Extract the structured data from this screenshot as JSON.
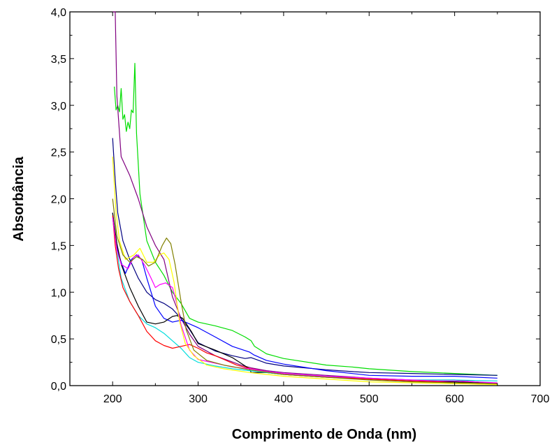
{
  "chart_data": {
    "type": "line",
    "title": "",
    "xlabel": "Comprimento de Onda (nm)",
    "ylabel": "Absorbância",
    "xlim": [
      150,
      700
    ],
    "ylim": [
      0,
      4.0
    ],
    "xticks": [
      200,
      300,
      400,
      500,
      600,
      700
    ],
    "xtick_labels": [
      "200",
      "300",
      "400",
      "500",
      "600",
      "700"
    ],
    "yticks": [
      0,
      0.5,
      1.0,
      1.5,
      2.0,
      2.5,
      3.0,
      3.5,
      4.0
    ],
    "ytick_labels": [
      "0,0",
      "0,5",
      "1,0",
      "1,5",
      "2,0",
      "2,5",
      "3,0",
      "3,5",
      "4,0"
    ],
    "grid": false,
    "legend": "none",
    "series": [
      {
        "color": "#00dd00",
        "points": [
          [
            202,
            3.2
          ],
          [
            204,
            2.95
          ],
          [
            206,
            3.0
          ],
          [
            208,
            2.93
          ],
          [
            210,
            3.18
          ],
          [
            212,
            2.85
          ],
          [
            214,
            2.9
          ],
          [
            216,
            2.72
          ],
          [
            218,
            2.82
          ],
          [
            220,
            2.75
          ],
          [
            222,
            2.95
          ],
          [
            224,
            2.92
          ],
          [
            226,
            3.45
          ],
          [
            228,
            2.7
          ],
          [
            232,
            2.05
          ],
          [
            240,
            1.55
          ],
          [
            250,
            1.32
          ],
          [
            260,
            1.18
          ],
          [
            270,
            1.0
          ],
          [
            280,
            0.88
          ],
          [
            290,
            0.72
          ],
          [
            300,
            0.68
          ],
          [
            320,
            0.64
          ],
          [
            340,
            0.59
          ],
          [
            355,
            0.52
          ],
          [
            362,
            0.48
          ],
          [
            366,
            0.42
          ],
          [
            380,
            0.34
          ],
          [
            400,
            0.29
          ],
          [
            450,
            0.22
          ],
          [
            480,
            0.2
          ],
          [
            500,
            0.18
          ],
          [
            550,
            0.15
          ],
          [
            600,
            0.13
          ],
          [
            650,
            0.11
          ]
        ]
      },
      {
        "color": "#800080",
        "points": [
          [
            200,
            4.0
          ],
          [
            203,
            4.0
          ],
          [
            205,
            3.1
          ],
          [
            210,
            2.45
          ],
          [
            220,
            2.25
          ],
          [
            230,
            2.0
          ],
          [
            240,
            1.7
          ],
          [
            250,
            1.5
          ],
          [
            260,
            1.35
          ],
          [
            270,
            0.95
          ],
          [
            280,
            0.72
          ],
          [
            290,
            0.55
          ],
          [
            300,
            0.42
          ],
          [
            320,
            0.32
          ],
          [
            350,
            0.22
          ],
          [
            362,
            0.19
          ],
          [
            380,
            0.16
          ],
          [
            400,
            0.14
          ],
          [
            450,
            0.11
          ],
          [
            500,
            0.08
          ],
          [
            550,
            0.06
          ],
          [
            600,
            0.06
          ],
          [
            650,
            0.02
          ]
        ]
      },
      {
        "color": "#000080",
        "points": [
          [
            200,
            2.65
          ],
          [
            203,
            2.2
          ],
          [
            206,
            1.85
          ],
          [
            212,
            1.55
          ],
          [
            220,
            1.35
          ],
          [
            230,
            1.15
          ],
          [
            240,
            1.0
          ],
          [
            250,
            0.92
          ],
          [
            260,
            0.88
          ],
          [
            270,
            0.82
          ],
          [
            280,
            0.72
          ],
          [
            290,
            0.6
          ],
          [
            300,
            0.46
          ],
          [
            320,
            0.37
          ],
          [
            340,
            0.32
          ],
          [
            355,
            0.29
          ],
          [
            362,
            0.3
          ],
          [
            380,
            0.24
          ],
          [
            400,
            0.21
          ],
          [
            450,
            0.17
          ],
          [
            480,
            0.15
          ],
          [
            500,
            0.14
          ],
          [
            550,
            0.13
          ],
          [
            600,
            0.12
          ],
          [
            650,
            0.11
          ]
        ]
      },
      {
        "color": "#0000ff",
        "points": [
          [
            200,
            1.85
          ],
          [
            203,
            1.6
          ],
          [
            206,
            1.45
          ],
          [
            210,
            1.32
          ],
          [
            215,
            1.2
          ],
          [
            222,
            1.35
          ],
          [
            228,
            1.4
          ],
          [
            234,
            1.35
          ],
          [
            240,
            1.15
          ],
          [
            250,
            0.85
          ],
          [
            260,
            0.72
          ],
          [
            270,
            0.68
          ],
          [
            280,
            0.7
          ],
          [
            290,
            0.66
          ],
          [
            300,
            0.62
          ],
          [
            320,
            0.52
          ],
          [
            340,
            0.42
          ],
          [
            360,
            0.36
          ],
          [
            365,
            0.33
          ],
          [
            380,
            0.27
          ],
          [
            400,
            0.23
          ],
          [
            450,
            0.16
          ],
          [
            500,
            0.11
          ],
          [
            550,
            0.1
          ],
          [
            600,
            0.1
          ],
          [
            650,
            0.08
          ]
        ]
      },
      {
        "color": "#000000",
        "points": [
          [
            200,
            1.85
          ],
          [
            205,
            1.52
          ],
          [
            210,
            1.3
          ],
          [
            220,
            1.05
          ],
          [
            230,
            0.85
          ],
          [
            240,
            0.68
          ],
          [
            250,
            0.66
          ],
          [
            260,
            0.68
          ],
          [
            270,
            0.74
          ],
          [
            275,
            0.75
          ],
          [
            282,
            0.72
          ],
          [
            292,
            0.58
          ],
          [
            300,
            0.45
          ],
          [
            320,
            0.38
          ],
          [
            340,
            0.3
          ],
          [
            360,
            0.18
          ],
          [
            362,
            0.14
          ],
          [
            380,
            0.14
          ],
          [
            400,
            0.12
          ],
          [
            450,
            0.09
          ],
          [
            500,
            0.07
          ],
          [
            550,
            0.05
          ],
          [
            600,
            0.04
          ],
          [
            650,
            0.02
          ]
        ]
      },
      {
        "color": "#00dddd",
        "points": [
          [
            200,
            1.8
          ],
          [
            205,
            1.45
          ],
          [
            210,
            1.15
          ],
          [
            220,
            0.9
          ],
          [
            230,
            0.75
          ],
          [
            240,
            0.66
          ],
          [
            250,
            0.62
          ],
          [
            260,
            0.56
          ],
          [
            270,
            0.48
          ],
          [
            280,
            0.4
          ],
          [
            290,
            0.3
          ],
          [
            300,
            0.25
          ],
          [
            320,
            0.21
          ],
          [
            340,
            0.18
          ],
          [
            360,
            0.16
          ],
          [
            380,
            0.14
          ],
          [
            400,
            0.12
          ],
          [
            450,
            0.1
          ],
          [
            500,
            0.07
          ],
          [
            550,
            0.06
          ],
          [
            600,
            0.06
          ],
          [
            650,
            0.05
          ]
        ]
      },
      {
        "color": "#ff0000",
        "points": [
          [
            200,
            1.82
          ],
          [
            203,
            1.5
          ],
          [
            207,
            1.25
          ],
          [
            212,
            1.05
          ],
          [
            220,
            0.9
          ],
          [
            230,
            0.75
          ],
          [
            240,
            0.58
          ],
          [
            250,
            0.48
          ],
          [
            260,
            0.43
          ],
          [
            270,
            0.4
          ],
          [
            280,
            0.42
          ],
          [
            290,
            0.44
          ],
          [
            300,
            0.4
          ],
          [
            310,
            0.35
          ],
          [
            320,
            0.32
          ],
          [
            330,
            0.28
          ],
          [
            345,
            0.22
          ],
          [
            362,
            0.18
          ],
          [
            380,
            0.15
          ],
          [
            400,
            0.12
          ],
          [
            450,
            0.09
          ],
          [
            500,
            0.07
          ],
          [
            550,
            0.05
          ],
          [
            580,
            0.04
          ],
          [
            600,
            0.03
          ],
          [
            650,
            0.02
          ]
        ]
      },
      {
        "color": "#ff00ff",
        "points": [
          [
            200,
            1.8
          ],
          [
            205,
            1.45
          ],
          [
            210,
            1.3
          ],
          [
            218,
            1.25
          ],
          [
            225,
            1.38
          ],
          [
            230,
            1.4
          ],
          [
            238,
            1.28
          ],
          [
            245,
            1.15
          ],
          [
            250,
            1.05
          ],
          [
            255,
            1.08
          ],
          [
            262,
            1.1
          ],
          [
            270,
            1.05
          ],
          [
            275,
            0.88
          ],
          [
            280,
            0.65
          ],
          [
            290,
            0.38
          ],
          [
            300,
            0.28
          ],
          [
            320,
            0.24
          ],
          [
            340,
            0.2
          ],
          [
            360,
            0.18
          ],
          [
            380,
            0.15
          ],
          [
            400,
            0.13
          ],
          [
            450,
            0.1
          ],
          [
            500,
            0.08
          ],
          [
            550,
            0.06
          ],
          [
            580,
            0.05
          ],
          [
            600,
            0.05
          ],
          [
            650,
            0.03
          ]
        ]
      },
      {
        "color": "#ffff00",
        "points": [
          [
            200,
            2.45
          ],
          [
            204,
            1.85
          ],
          [
            208,
            1.55
          ],
          [
            215,
            1.35
          ],
          [
            225,
            1.4
          ],
          [
            232,
            1.47
          ],
          [
            240,
            1.32
          ],
          [
            248,
            1.32
          ],
          [
            255,
            1.4
          ],
          [
            260,
            1.42
          ],
          [
            266,
            1.35
          ],
          [
            272,
            1.1
          ],
          [
            278,
            0.7
          ],
          [
            285,
            0.45
          ],
          [
            295,
            0.32
          ],
          [
            310,
            0.22
          ],
          [
            330,
            0.18
          ],
          [
            360,
            0.14
          ],
          [
            400,
            0.1
          ],
          [
            450,
            0.07
          ],
          [
            500,
            0.04
          ],
          [
            550,
            0.03
          ],
          [
            600,
            0.02
          ],
          [
            650,
            0.01
          ]
        ]
      },
      {
        "color": "#808000",
        "points": [
          [
            200,
            2.0
          ],
          [
            205,
            1.6
          ],
          [
            212,
            1.4
          ],
          [
            220,
            1.32
          ],
          [
            228,
            1.38
          ],
          [
            235,
            1.35
          ],
          [
            242,
            1.28
          ],
          [
            250,
            1.32
          ],
          [
            258,
            1.5
          ],
          [
            263,
            1.58
          ],
          [
            268,
            1.52
          ],
          [
            273,
            1.3
          ],
          [
            280,
            0.9
          ],
          [
            286,
            0.6
          ],
          [
            295,
            0.38
          ],
          [
            310,
            0.27
          ],
          [
            330,
            0.22
          ],
          [
            360,
            0.17
          ],
          [
            400,
            0.12
          ],
          [
            450,
            0.09
          ],
          [
            500,
            0.06
          ],
          [
            550,
            0.04
          ],
          [
            600,
            0.03
          ],
          [
            650,
            0.02
          ]
        ]
      }
    ]
  }
}
